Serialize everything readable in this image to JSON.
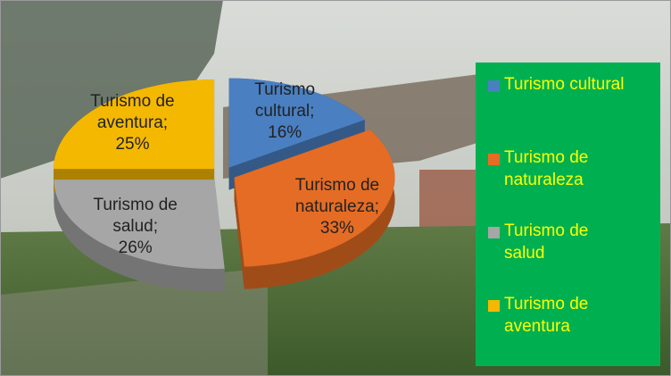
{
  "chart_data": {
    "type": "pie",
    "categories": [
      "Turismo cultural",
      "Turismo de naturaleza",
      "Turismo de salud",
      "Turismo de aventura"
    ],
    "values": [
      16,
      33,
      26,
      25
    ],
    "value_labels": [
      "16%",
      "33%",
      "26%",
      "25%"
    ],
    "label_separator": ";",
    "colors": [
      "#4a7fc1",
      "#e56c24",
      "#a6a6a6",
      "#f5b800"
    ],
    "legend": "right"
  }
}
